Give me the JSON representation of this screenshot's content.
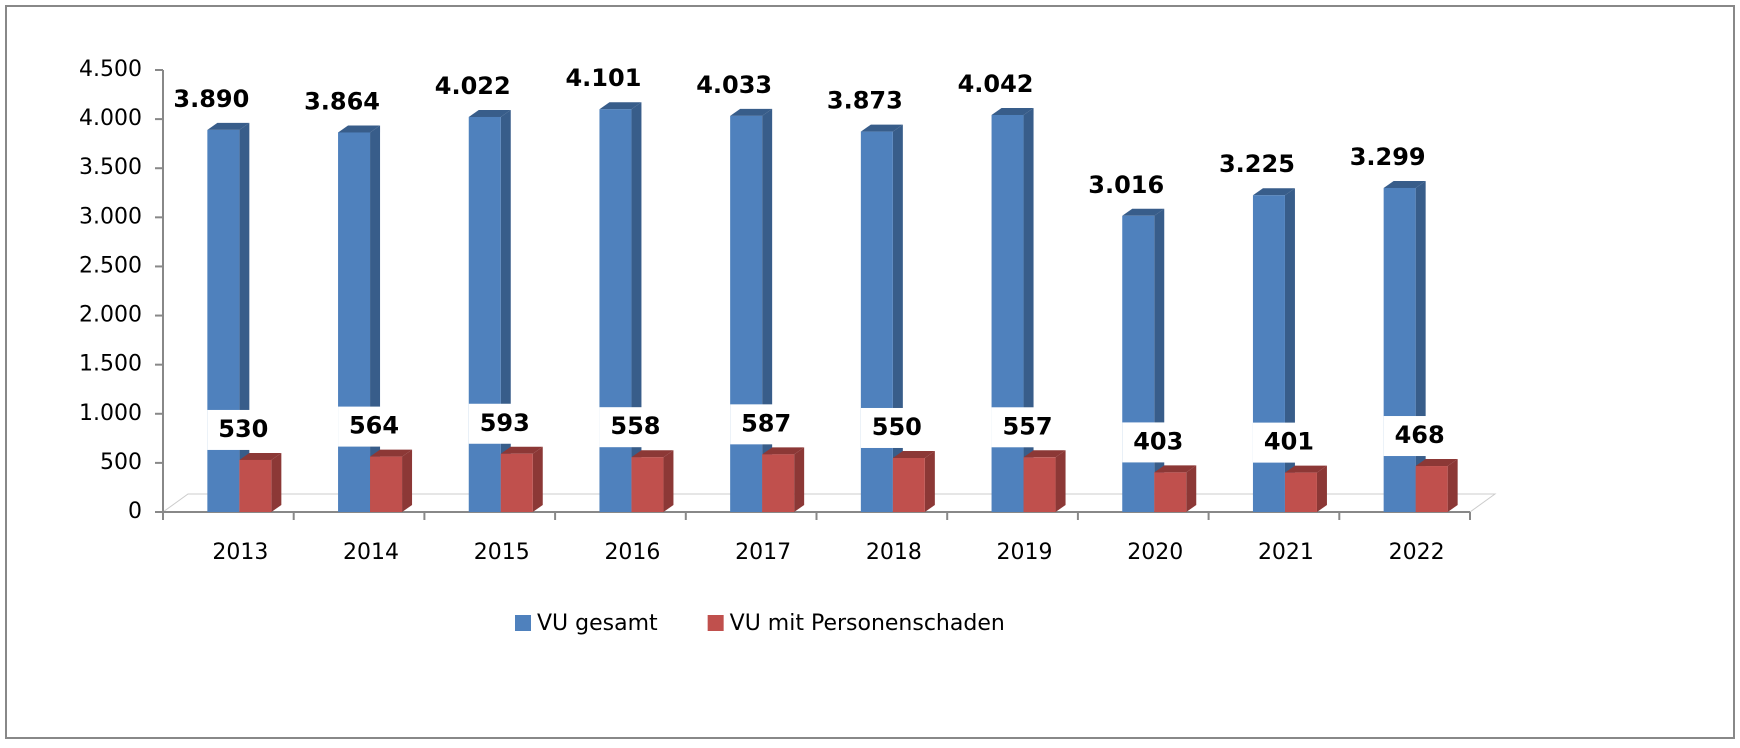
{
  "chart_data": {
    "type": "bar3d",
    "categories": [
      "2013",
      "2014",
      "2015",
      "2016",
      "2017",
      "2018",
      "2019",
      "2020",
      "2021",
      "2022"
    ],
    "series": [
      {
        "name": "VU gesamt",
        "color": "#4f81bd",
        "side": "#385d8a",
        "values": [
          3890,
          3864,
          4022,
          4101,
          4033,
          3873,
          4042,
          3016,
          3225,
          3299
        ],
        "value_labels": [
          "3.890",
          "3.864",
          "4.022",
          "4.101",
          "4.033",
          "3.873",
          "4.042",
          "3.016",
          "3.225",
          "3.299"
        ]
      },
      {
        "name": "VU mit Personenschaden",
        "color": "#c0504d",
        "side": "#8c3836",
        "values": [
          530,
          564,
          593,
          558,
          587,
          550,
          557,
          403,
          401,
          468
        ]
      }
    ],
    "ylim": [
      0,
      4500
    ],
    "yticks": [
      0,
      500,
      {
        "value": 1000,
        "label": "1.000"
      },
      {
        "value": 1500,
        "label": "1.500"
      },
      {
        "value": 2000,
        "label": "2.000"
      },
      {
        "value": 2500,
        "label": "2.500"
      },
      {
        "value": 3000,
        "label": "3.000"
      },
      {
        "value": 3500,
        "label": "3.500"
      },
      {
        "value": 4000,
        "label": "4.000"
      },
      {
        "value": 4500,
        "label": "4.500"
      }
    ],
    "legend": "bottom"
  }
}
